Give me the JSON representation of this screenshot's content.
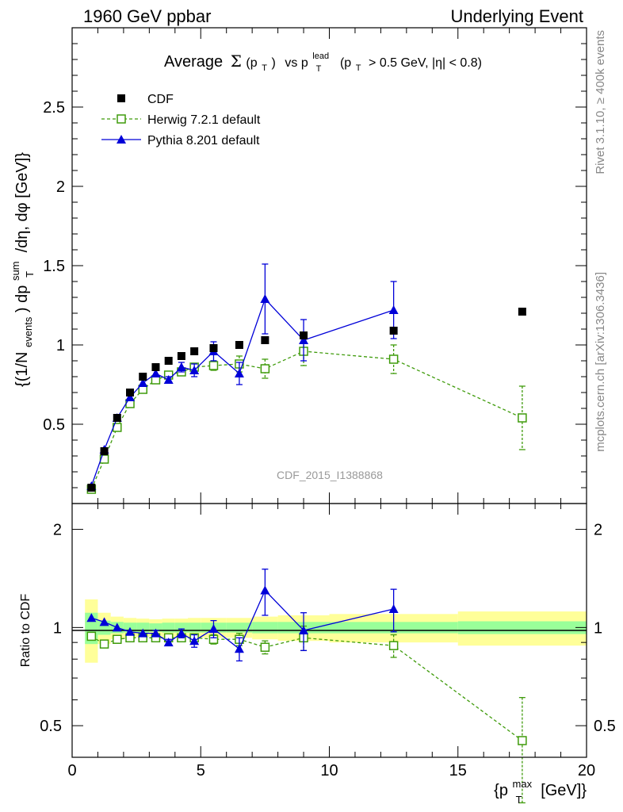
{
  "header": {
    "left": "1960 GeV ppbar",
    "right": "Underlying Event"
  },
  "title": {
    "prefix": "Average",
    "sigma": "Σ",
    "pt_open": "(p",
    "pt_sub": "T",
    "pt_close": ")",
    "vs": "vs p",
    "lead_sup": "lead",
    "lead_sub": "T",
    "cut_open": "(p",
    "cut_sub": "T",
    "cut_rest": "> 0.5 GeV, |η| < 0.8)"
  },
  "ylabel": {
    "part1": "{(1/N",
    "events_sub": "events",
    "part2": ") dp",
    "sum_sup": "sum",
    "t_sub": "T",
    "part3": "/dη, dφ [GeV]}"
  },
  "xlabel": {
    "part1": "{p",
    "max_sup": "max",
    "t_sub": "T",
    "part2": "[GeV]}"
  },
  "ratio_ylabel": "Ratio to CDF",
  "side_labels": {
    "rivet": "Rivet 3.1.10, ≥ 400k events",
    "mcplots": "mcplots.cern.ch [arXiv:1306.3436]"
  },
  "watermark": "CDF_2015_I1388868",
  "legend": {
    "cdf": "CDF",
    "herwig": "Herwig 7.2.1 default",
    "pythia": "Pythia 8.201 default"
  },
  "colors": {
    "cdf": "#000000",
    "herwig": "#3f9b0b",
    "pythia": "#0000d8",
    "band_inner": "#99ff99",
    "band_outer": "#ffff99"
  },
  "chart_data": [
    {
      "type": "scatter",
      "title": "Average Σ(pT) vs pT lead (pT > 0.5 GeV, |η| < 0.8)",
      "xlabel": "{pT max [GeV]}",
      "ylabel": "{(1/Nevents) dpT sum/dη, dφ [GeV]}",
      "xlim": [
        0,
        20
      ],
      "ylim": [
        0,
        3.0
      ],
      "xticks": [
        0,
        5,
        10,
        15,
        20
      ],
      "yticks": [
        0.5,
        1,
        1.5,
        2,
        2.5
      ],
      "ytick_labels": [
        "0.5",
        "1",
        "1.5",
        "2",
        "2.5"
      ],
      "bins": [
        [
          0.5,
          1.0
        ],
        [
          1.0,
          1.5
        ],
        [
          1.5,
          2.0
        ],
        [
          2.0,
          2.5
        ],
        [
          2.5,
          3.0
        ],
        [
          3.0,
          3.5
        ],
        [
          3.5,
          4.0
        ],
        [
          4.0,
          4.5
        ],
        [
          4.5,
          5.0
        ],
        [
          5.0,
          6.0
        ],
        [
          6.0,
          7.0
        ],
        [
          7.0,
          8.0
        ],
        [
          8.0,
          10.0
        ],
        [
          10.0,
          15.0
        ],
        [
          15.0,
          20.0
        ]
      ],
      "series": [
        {
          "name": "CDF",
          "x": [
            0.75,
            1.25,
            1.75,
            2.25,
            2.75,
            3.25,
            3.75,
            4.25,
            4.75,
            5.5,
            6.5,
            7.5,
            9.0,
            12.5,
            17.5
          ],
          "y": [
            0.1,
            0.33,
            0.54,
            0.7,
            0.8,
            0.86,
            0.9,
            0.93,
            0.96,
            0.98,
            1.0,
            1.03,
            1.06,
            1.09,
            1.21
          ],
          "err": [
            0.01,
            0.01,
            0.01,
            0.01,
            0.01,
            0.01,
            0.01,
            0.01,
            0.01,
            0.01,
            0.01,
            0.01,
            0.02,
            0.02,
            0.02
          ]
        },
        {
          "name": "Herwig 7.2.1 default",
          "x": [
            0.75,
            1.25,
            1.75,
            2.25,
            2.75,
            3.25,
            3.75,
            4.25,
            4.75,
            5.5,
            6.5,
            7.5,
            9.0,
            12.5,
            17.5
          ],
          "y": [
            0.09,
            0.28,
            0.48,
            0.63,
            0.72,
            0.78,
            0.81,
            0.83,
            0.86,
            0.87,
            0.88,
            0.85,
            0.96,
            0.91,
            0.54
          ],
          "err": [
            0.005,
            0.01,
            0.01,
            0.01,
            0.01,
            0.01,
            0.01,
            0.02,
            0.02,
            0.03,
            0.05,
            0.06,
            0.09,
            0.09,
            0.2
          ]
        },
        {
          "name": "Pythia 8.201 default",
          "x": [
            0.75,
            1.25,
            1.75,
            2.25,
            2.75,
            3.25,
            3.75,
            4.25,
            4.75,
            5.5,
            6.5,
            7.5,
            9.0,
            12.5
          ],
          "y": [
            0.11,
            0.34,
            0.54,
            0.67,
            0.76,
            0.82,
            0.78,
            0.86,
            0.84,
            0.96,
            0.82,
            1.29,
            1.03,
            1.22
          ],
          "err": [
            0.005,
            0.01,
            0.01,
            0.01,
            0.01,
            0.02,
            0.02,
            0.03,
            0.04,
            0.06,
            0.07,
            0.22,
            0.13,
            0.18
          ]
        }
      ]
    },
    {
      "type": "scatter",
      "xlabel": "{pT max [GeV]}",
      "ylabel": "Ratio to CDF",
      "xlim": [
        0,
        20
      ],
      "ylim": [
        0.4,
        2.4
      ],
      "yticks": [
        0.5,
        1,
        2
      ],
      "ytick_labels": [
        "0.5",
        "1",
        "2"
      ],
      "band_inner_halfwidth": [
        0.11,
        0.05,
        0.04,
        0.035,
        0.035,
        0.03,
        0.035,
        0.035,
        0.035,
        0.035,
        0.035,
        0.04,
        0.04,
        0.04,
        0.045
      ],
      "band_outer_halfwidth": [
        0.22,
        0.11,
        0.08,
        0.07,
        0.065,
        0.06,
        0.065,
        0.065,
        0.07,
        0.07,
        0.07,
        0.08,
        0.09,
        0.1,
        0.12
      ],
      "series": [
        {
          "name": "Herwig 7.2.1 default",
          "x": [
            0.75,
            1.25,
            1.75,
            2.25,
            2.75,
            3.25,
            3.75,
            4.25,
            4.75,
            5.5,
            6.5,
            7.5,
            9.0,
            12.5,
            17.5
          ],
          "y": [
            0.94,
            0.89,
            0.92,
            0.93,
            0.93,
            0.93,
            0.93,
            0.93,
            0.93,
            0.92,
            0.92,
            0.87,
            0.93,
            0.88,
            0.45
          ],
          "err": [
            0.02,
            0.02,
            0.02,
            0.02,
            0.02,
            0.02,
            0.02,
            0.02,
            0.02,
            0.03,
            0.04,
            0.04,
            0.08,
            0.07,
            0.16
          ]
        },
        {
          "name": "Pythia 8.201 default",
          "x": [
            0.75,
            1.25,
            1.75,
            2.25,
            2.75,
            3.25,
            3.75,
            4.25,
            4.75,
            5.5,
            6.5,
            7.5,
            9.0,
            12.5
          ],
          "y": [
            1.07,
            1.04,
            1.0,
            0.97,
            0.96,
            0.96,
            0.9,
            0.96,
            0.91,
            0.99,
            0.86,
            1.3,
            0.98,
            1.14
          ],
          "err": [
            0.01,
            0.01,
            0.01,
            0.01,
            0.01,
            0.02,
            0.02,
            0.03,
            0.04,
            0.06,
            0.07,
            0.21,
            0.13,
            0.17
          ]
        }
      ]
    }
  ]
}
